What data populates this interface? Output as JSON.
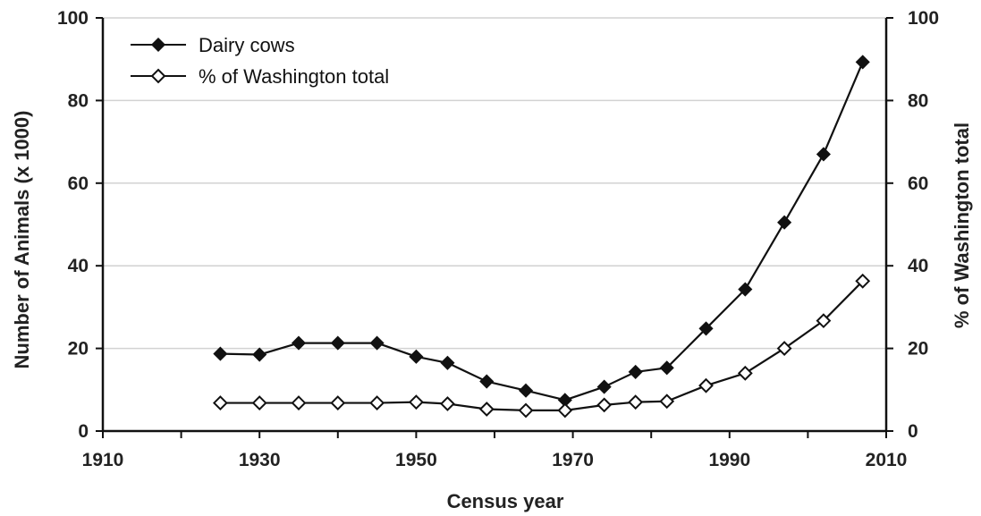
{
  "chart_data": {
    "type": "line",
    "xlabel": "Census year",
    "ylabel": "Number of Animals (x 1000)",
    "y2label": "% of Washington total",
    "xlim": [
      1910,
      2010
    ],
    "ylim": [
      0,
      100
    ],
    "y2lim": [
      0,
      100
    ],
    "xticks": [
      "1910",
      "1930",
      "1950",
      "1970",
      "1990",
      "2010"
    ],
    "yticks": [
      "0",
      "20",
      "40",
      "60",
      "80",
      "100"
    ],
    "y2ticks": [
      "0",
      "20",
      "40",
      "60",
      "80",
      "100"
    ],
    "grid": "horizontal",
    "legend_position": "top-left",
    "series": [
      {
        "name": "Dairy cows",
        "axis": "left",
        "marker": "filled-diamond",
        "color": "#111111",
        "x": [
          1925,
          1930,
          1935,
          1940,
          1945,
          1950,
          1954,
          1959,
          1964,
          1969,
          1974,
          1978,
          1982,
          1987,
          1992,
          1997,
          2002,
          2007
        ],
        "y": [
          18.7,
          18.5,
          21.3,
          21.3,
          21.3,
          18.0,
          16.5,
          12.0,
          9.8,
          7.5,
          10.7,
          14.3,
          15.3,
          24.8,
          34.3,
          50.5,
          67.0,
          89.3
        ]
      },
      {
        "name": "% of Washington total",
        "axis": "right",
        "marker": "open-diamond",
        "color": "#111111",
        "x": [
          1925,
          1930,
          1935,
          1940,
          1945,
          1950,
          1954,
          1959,
          1964,
          1969,
          1974,
          1978,
          1982,
          1987,
          1992,
          1997,
          2002,
          2007
        ],
        "y": [
          6.8,
          6.8,
          6.8,
          6.8,
          6.8,
          7.0,
          6.6,
          5.3,
          5.0,
          5.0,
          6.3,
          7.0,
          7.2,
          11.0,
          14.0,
          20.0,
          26.7,
          36.3
        ]
      }
    ]
  }
}
